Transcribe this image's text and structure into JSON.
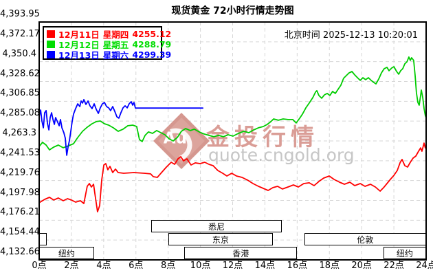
{
  "title": "现货黄金 72小时行情走势图",
  "timestamp": {
    "label": "北京时间",
    "value": "2025-12-13 10:20:01"
  },
  "legend": [
    {
      "date": "12月11日",
      "weekday": "星期四",
      "price": "4255.12",
      "color": "#ff0000"
    },
    {
      "date": "12月12日",
      "weekday": "星期五",
      "price": "4288.79",
      "color": "#00dd00"
    },
    {
      "date": "12月13日",
      "weekday": "星期六",
      "price": "4299.39",
      "color": "#0000ff"
    }
  ],
  "watermark": {
    "logo_text": "Au",
    "brand": "金投行情",
    "url": "quote.cngold.org",
    "diamond_color": "#d5978f",
    "brand_color": "#da9d96",
    "url_color": "#c6c6c6"
  },
  "sessions": [
    {
      "name": "纽约",
      "row": 2,
      "start": 0,
      "end": 3.4
    },
    {
      "name": "",
      "row": 1,
      "start": 0,
      "end": 0.45
    },
    {
      "name": "悉尼",
      "row": 0,
      "start": 6.95,
      "end": 15.05
    },
    {
      "name": "东京",
      "row": 1,
      "start": 8.0,
      "end": 14.5
    },
    {
      "name": "香港",
      "row": 2,
      "start": 9.0,
      "end": 16.0
    },
    {
      "name": "伦敦",
      "row": 1,
      "start": 16.45,
      "end": 24.0
    },
    {
      "name": "纽约",
      "row": 2,
      "start": 21.35,
      "end": 24.0
    }
  ],
  "chart_data": {
    "type": "line",
    "x_unit": "hour_beijing",
    "xlim": [
      0,
      24
    ],
    "ylim": [
      4132.66,
      4393.95
    ],
    "grid": true,
    "y_ticks": [
      4393.95,
      4372.17,
      4350.4,
      4328.62,
      4306.85,
      4285.08,
      4263.3,
      4241.53,
      4219.76,
      4197.98,
      4176.21,
      4154.44,
      4132.66
    ],
    "y_tick_labels": [
      "4,393.95",
      "4,372.17",
      "4,350.4",
      "4,328.62",
      "4,306.85",
      "4,285.08",
      "4,263.3",
      "4,241.53",
      "4,219.76",
      "4,197.98",
      "4,176.21",
      "4,154.44",
      "4,132.66"
    ],
    "x_tick_labels": [
      "0点",
      "2点",
      "4点",
      "6点",
      "8点",
      "10点",
      "12点",
      "14点",
      "16点",
      "18点",
      "20点",
      "22点",
      "24点"
    ],
    "series": [
      {
        "name": "12月11日 星期四",
        "close": 4255.12,
        "color": "#ff0000",
        "points": [
          [
            0,
            4195.4
          ],
          [
            0.34,
            4199.1
          ],
          [
            0.64,
            4201.4
          ],
          [
            0.9,
            4198.4
          ],
          [
            1.19,
            4200.6
          ],
          [
            1.49,
            4197.6
          ],
          [
            1.75,
            4199.9
          ],
          [
            2,
            4198.4
          ],
          [
            2.26,
            4196.1
          ],
          [
            2.56,
            4197.6
          ],
          [
            2.77,
            4194.6
          ],
          [
            2.98,
            4213.5
          ],
          [
            3.11,
            4216.5
          ],
          [
            3.24,
            4212.7
          ],
          [
            3.37,
            4215.7
          ],
          [
            3.5,
            4199.9
          ],
          [
            3.62,
            4185.5
          ],
          [
            3.75,
            4192.3
          ],
          [
            3.88,
            4220.3
          ],
          [
            4.01,
            4236.9
          ],
          [
            4.13,
            4238.4
          ],
          [
            4.26,
            4231.6
          ],
          [
            4.39,
            4235.4
          ],
          [
            4.56,
            4228.6
          ],
          [
            4.73,
            4232.4
          ],
          [
            4.9,
            4228.6
          ],
          [
            5.24,
            4227.8
          ],
          [
            5.88,
            4228.6
          ],
          [
            6.52,
            4227.8
          ],
          [
            6.91,
            4227.1
          ],
          [
            7.08,
            4224
          ],
          [
            7.33,
            4223.3
          ],
          [
            7.59,
            4228.6
          ],
          [
            7.89,
            4234.6
          ],
          [
            8.19,
            4239.9
          ],
          [
            8.4,
            4237.6
          ],
          [
            8.61,
            4243.7
          ],
          [
            8.78,
            4245.9
          ],
          [
            8.95,
            4241.4
          ],
          [
            9.16,
            4243.7
          ],
          [
            9.42,
            4236.9
          ],
          [
            9.68,
            4239.2
          ],
          [
            9.98,
            4238.4
          ],
          [
            10.27,
            4239.9
          ],
          [
            10.53,
            4237.6
          ],
          [
            10.79,
            4236.1
          ],
          [
            11.08,
            4230.8
          ],
          [
            11.38,
            4227.8
          ],
          [
            11.64,
            4224.8
          ],
          [
            11.94,
            4227.8
          ],
          [
            12.24,
            4224.8
          ],
          [
            12.58,
            4223.3
          ],
          [
            12.92,
            4220.3
          ],
          [
            13.26,
            4216.5
          ],
          [
            13.6,
            4213.5
          ],
          [
            13.9,
            4211.2
          ],
          [
            14.2,
            4208.9
          ],
          [
            14.5,
            4212
          ],
          [
            14.79,
            4213.5
          ],
          [
            15.09,
            4210.5
          ],
          [
            15.43,
            4212.7
          ],
          [
            15.77,
            4215
          ],
          [
            16.07,
            4212.7
          ],
          [
            16.41,
            4216.5
          ],
          [
            16.75,
            4217.3
          ],
          [
            17.05,
            4214.2
          ],
          [
            17.35,
            4218.8
          ],
          [
            17.65,
            4222.5
          ],
          [
            17.99,
            4224.8
          ],
          [
            18.29,
            4221
          ],
          [
            18.63,
            4218
          ],
          [
            18.93,
            4215.7
          ],
          [
            19.27,
            4218
          ],
          [
            19.57,
            4214.2
          ],
          [
            19.91,
            4216.5
          ],
          [
            20.21,
            4213.5
          ],
          [
            20.55,
            4215.7
          ],
          [
            20.85,
            4212.7
          ],
          [
            21.15,
            4208.2
          ],
          [
            21.36,
            4212
          ],
          [
            21.57,
            4216.5
          ],
          [
            21.78,
            4221
          ],
          [
            22,
            4225.5
          ],
          [
            22.21,
            4230.8
          ],
          [
            22.38,
            4239.2
          ],
          [
            22.51,
            4243
          ],
          [
            22.68,
            4236.1
          ],
          [
            22.85,
            4234.6
          ],
          [
            23.02,
            4239.9
          ],
          [
            23.19,
            4244.4
          ],
          [
            23.36,
            4246.7
          ],
          [
            23.53,
            4252
          ],
          [
            23.66,
            4255.7
          ],
          [
            23.74,
            4252
          ],
          [
            23.87,
            4261
          ],
          [
            23.95,
            4255.7
          ],
          [
            24,
            4255.1
          ]
        ]
      },
      {
        "name": "12月12日 星期五",
        "close": 4288.79,
        "color": "#00cc00",
        "points": [
          [
            0,
            4257.3
          ],
          [
            0.21,
            4261.8
          ],
          [
            0.43,
            4258.8
          ],
          [
            0.64,
            4253.5
          ],
          [
            0.9,
            4256.5
          ],
          [
            1.19,
            4258.8
          ],
          [
            1.49,
            4255.8
          ],
          [
            1.83,
            4258
          ],
          [
            2.13,
            4260.3
          ],
          [
            2.39,
            4267.1
          ],
          [
            2.69,
            4273.9
          ],
          [
            2.98,
            4278.4
          ],
          [
            3.28,
            4282.2
          ],
          [
            3.54,
            4284.5
          ],
          [
            3.79,
            4285.2
          ],
          [
            4.05,
            4282.2
          ],
          [
            4.31,
            4280.7
          ],
          [
            4.6,
            4277.7
          ],
          [
            4.9,
            4273.9
          ],
          [
            5.2,
            4276.2
          ],
          [
            5.5,
            4280
          ],
          [
            5.8,
            4280.7
          ],
          [
            6.05,
            4279.2
          ],
          [
            6.22,
            4264.8
          ],
          [
            6.39,
            4262.6
          ],
          [
            6.57,
            4269.4
          ],
          [
            6.78,
            4273.2
          ],
          [
            7.03,
            4271.6
          ],
          [
            7.29,
            4274.7
          ],
          [
            7.55,
            4272.4
          ],
          [
            7.8,
            4270.1
          ],
          [
            8.06,
            4265.6
          ],
          [
            8.31,
            4263.3
          ],
          [
            8.57,
            4267.1
          ],
          [
            8.82,
            4273.9
          ],
          [
            9.08,
            4276.9
          ],
          [
            9.38,
            4274.7
          ],
          [
            9.63,
            4276.2
          ],
          [
            9.93,
            4273.2
          ],
          [
            10.23,
            4270.9
          ],
          [
            10.53,
            4269.4
          ],
          [
            10.83,
            4267.9
          ],
          [
            11.13,
            4269.4
          ],
          [
            11.42,
            4267.9
          ],
          [
            11.72,
            4270.1
          ],
          [
            12.02,
            4268.6
          ],
          [
            12.36,
            4271.6
          ],
          [
            12.7,
            4273.9
          ],
          [
            13,
            4272.4
          ],
          [
            13.3,
            4275.4
          ],
          [
            13.6,
            4277.7
          ],
          [
            13.9,
            4279.2
          ],
          [
            14.15,
            4281.5
          ],
          [
            14.37,
            4284.5
          ],
          [
            14.54,
            4287.5
          ],
          [
            14.84,
            4286
          ],
          [
            15.13,
            4287.5
          ],
          [
            15.43,
            4286.8
          ],
          [
            15.73,
            4286.8
          ],
          [
            15.94,
            4283
          ],
          [
            16.16,
            4288.3
          ],
          [
            16.33,
            4292.8
          ],
          [
            16.54,
            4299.6
          ],
          [
            16.75,
            4304.9
          ],
          [
            16.97,
            4310.9
          ],
          [
            17.14,
            4317
          ],
          [
            17.22,
            4318.5
          ],
          [
            17.35,
            4313.2
          ],
          [
            17.52,
            4310.2
          ],
          [
            17.69,
            4313.9
          ],
          [
            17.86,
            4315.5
          ],
          [
            18.03,
            4313.2
          ],
          [
            18.2,
            4317.7
          ],
          [
            18.37,
            4315.5
          ],
          [
            18.54,
            4320
          ],
          [
            18.71,
            4324.5
          ],
          [
            18.88,
            4332.1
          ],
          [
            19.05,
            4335.1
          ],
          [
            19.22,
            4338.1
          ],
          [
            19.4,
            4339.6
          ],
          [
            19.57,
            4335.9
          ],
          [
            19.74,
            4332.8
          ],
          [
            19.91,
            4329.8
          ],
          [
            20.08,
            4332.8
          ],
          [
            20.25,
            4330.6
          ],
          [
            20.42,
            4332.8
          ],
          [
            20.59,
            4329.8
          ],
          [
            20.76,
            4327.5
          ],
          [
            20.89,
            4326
          ],
          [
            21.06,
            4331.3
          ],
          [
            21.23,
            4338.1
          ],
          [
            21.4,
            4342.7
          ],
          [
            21.57,
            4344.2
          ],
          [
            21.7,
            4340.4
          ],
          [
            21.87,
            4343.4
          ],
          [
            22,
            4344.9
          ],
          [
            22.17,
            4339.6
          ],
          [
            22.3,
            4336.6
          ],
          [
            22.42,
            4340.4
          ],
          [
            22.55,
            4342.7
          ],
          [
            22.68,
            4348
          ],
          [
            22.81,
            4350.2
          ],
          [
            22.93,
            4355.5
          ],
          [
            23.02,
            4351.7
          ],
          [
            23.1,
            4354.7
          ],
          [
            23.23,
            4351.7
          ],
          [
            23.32,
            4335.1
          ],
          [
            23.4,
            4316.2
          ],
          [
            23.49,
            4305.6
          ],
          [
            23.57,
            4302.6
          ],
          [
            23.66,
            4313.2
          ],
          [
            23.7,
            4319.2
          ],
          [
            23.79,
            4310.9
          ],
          [
            23.87,
            4298.9
          ],
          [
            23.95,
            4291.3
          ],
          [
            24,
            4288.8
          ]
        ]
      },
      {
        "name": "12月13日 星期六",
        "close": 4299.39,
        "color": "#0000ff",
        "points": [
          [
            0,
            4289.8
          ],
          [
            0.09,
            4297.3
          ],
          [
            0.17,
            4285.2
          ],
          [
            0.26,
            4277.7
          ],
          [
            0.34,
            4294.3
          ],
          [
            0.43,
            4296.6
          ],
          [
            0.51,
            4283
          ],
          [
            0.6,
            4275.4
          ],
          [
            0.68,
            4289
          ],
          [
            0.77,
            4294.3
          ],
          [
            0.85,
            4287.5
          ],
          [
            0.94,
            4281.5
          ],
          [
            1.02,
            4289
          ],
          [
            1.15,
            4283.7
          ],
          [
            1.24,
            4280
          ],
          [
            1.32,
            4286.8
          ],
          [
            1.41,
            4277.7
          ],
          [
            1.53,
            4272.4
          ],
          [
            1.62,
            4266.3
          ],
          [
            1.71,
            4247.5
          ],
          [
            1.79,
            4256.5
          ],
          [
            1.88,
            4264.1
          ],
          [
            1.96,
            4273.9
          ],
          [
            2.05,
            4285.2
          ],
          [
            2.13,
            4292.8
          ],
          [
            2.26,
            4298.8
          ],
          [
            2.39,
            4304.1
          ],
          [
            2.52,
            4301.1
          ],
          [
            2.6,
            4307.2
          ],
          [
            2.69,
            4304.9
          ],
          [
            2.77,
            4308.7
          ],
          [
            2.9,
            4303.4
          ],
          [
            3.03,
            4307.2
          ],
          [
            3.15,
            4301.9
          ],
          [
            3.28,
            4298.8
          ],
          [
            3.41,
            4304.1
          ],
          [
            3.54,
            4298.1
          ],
          [
            3.67,
            4293.6
          ],
          [
            3.79,
            4299.6
          ],
          [
            3.92,
            4304.1
          ],
          [
            4.05,
            4305.6
          ],
          [
            4.18,
            4301.1
          ],
          [
            4.31,
            4299.6
          ],
          [
            4.43,
            4296.6
          ],
          [
            4.56,
            4301.1
          ],
          [
            4.69,
            4295.8
          ],
          [
            4.82,
            4289.8
          ],
          [
            4.94,
            4288.3
          ],
          [
            5.07,
            4294.3
          ],
          [
            5.2,
            4299.6
          ],
          [
            5.33,
            4301.9
          ],
          [
            5.46,
            4299.6
          ],
          [
            5.58,
            4304.1
          ],
          [
            5.71,
            4306.4
          ],
          [
            5.8,
            4302.6
          ],
          [
            5.88,
            4305.6
          ],
          [
            5.97,
            4299.4
          ],
          [
            10.15,
            4299.4
          ]
        ]
      }
    ]
  }
}
